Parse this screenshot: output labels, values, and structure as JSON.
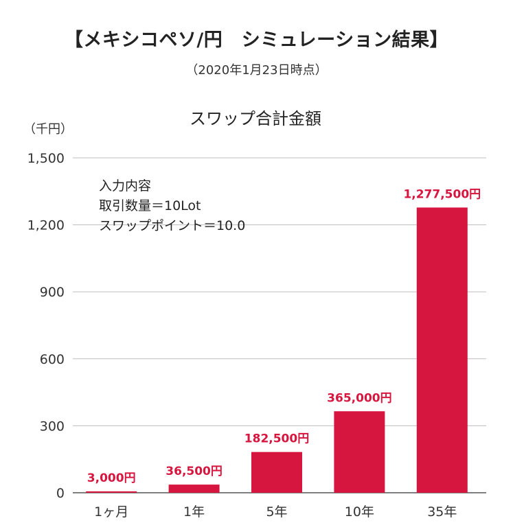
{
  "page": {
    "title": "【メキシコペソ/円　シミュレーション結果】",
    "subtitle": "（2020年1月23日時点）"
  },
  "chart_data": {
    "type": "bar",
    "title": "スワップ合計金額",
    "ylabel": "（千円）",
    "xlabel": "",
    "ylim": [
      0,
      1500
    ],
    "yticks": [
      0,
      300,
      600,
      900,
      1200,
      1500
    ],
    "ytick_labels": [
      "0",
      "300",
      "600",
      "900",
      "1,200",
      "1,500"
    ],
    "grid": true,
    "categories": [
      "1ヶ月",
      "1年",
      "5年",
      "10年",
      "35年"
    ],
    "values": [
      3,
      36.5,
      182.5,
      365,
      1277.5
    ],
    "data_labels": [
      "3,000円",
      "36,500円",
      "182,500円",
      "365,000円",
      "1,277,500円"
    ],
    "bar_color": "#d7163f",
    "label_color": "#d7163f",
    "annotation": {
      "lines": [
        "入力内容",
        "取引数量＝10Lot",
        "スワップポイント＝10.0"
      ]
    }
  }
}
